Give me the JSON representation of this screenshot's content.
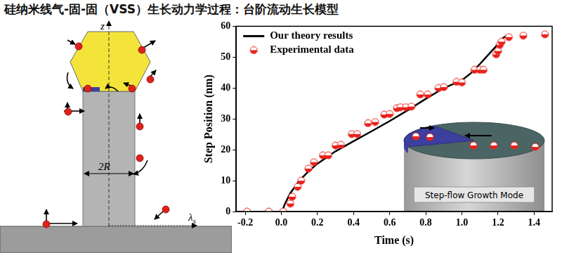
{
  "title": "硅纳米线气-固-固（VSS）生长动力学过程：台阶流动生长模型",
  "diagram": {
    "vertical_axis_label": "z",
    "horizontal_axis_label": "λs",
    "diameter_label": "2R"
  },
  "chart_data": {
    "type": "scatter",
    "x_label": "Time (s)",
    "y_label": "Step Position (nm)",
    "xlim": [
      -0.25,
      1.5
    ],
    "xticks": [
      -0.2,
      {
        "value": 0,
        "label": "0.0"
      },
      0.2,
      0.4,
      0.6,
      0.8,
      {
        "value": 1,
        "label": "1.0"
      },
      1.2,
      1.4
    ],
    "ylim": [
      0,
      60
    ],
    "yticks": [
      0,
      10,
      20,
      30,
      40,
      50,
      60
    ],
    "grid": false,
    "legend": "upper left",
    "annotations": [
      "Step-flow Growth Mode"
    ],
    "series": [
      {
        "name": "Our theory results",
        "type": "line",
        "color": "#000000",
        "marker": "none",
        "line_style": "solid",
        "x": [
          0,
          0.01,
          0.02,
          0.05,
          0.1,
          0.15,
          0.2,
          0.3,
          0.4,
          0.5,
          0.6,
          0.7,
          0.8,
          0.9,
          1.0,
          1.05,
          1.1,
          1.15,
          1.2,
          1.23,
          1.25
        ],
        "values": [
          0,
          1,
          2.5,
          6,
          10,
          13,
          15.5,
          19.5,
          22.8,
          26,
          29.3,
          32.8,
          36.5,
          40,
          42.5,
          44.8,
          47.8,
          51,
          54.2,
          56.3,
          57
        ]
      },
      {
        "name": "Experimental data",
        "type": "scatter",
        "color": "#e8201a",
        "marker": "half-filled circle",
        "x": [
          -0.19,
          -0.07,
          0.01,
          0.05,
          0.06,
          0.09,
          0.11,
          0.15,
          0.18,
          0.23,
          0.26,
          0.3,
          0.33,
          0.39,
          0.42,
          0.48,
          0.52,
          0.57,
          0.6,
          0.64,
          0.66,
          0.69,
          0.72,
          0.77,
          0.81,
          0.87,
          0.9,
          0.97,
          1.0,
          1.07,
          1.1,
          1.12,
          1.19,
          1.2,
          1.21,
          1.22,
          1.26,
          1.34,
          1.46
        ],
        "values": [
          0,
          0,
          0,
          2.6,
          4.8,
          8,
          10,
          13.9,
          16,
          18.2,
          18.2,
          21.4,
          21.6,
          25.1,
          25.1,
          28.6,
          29,
          31.4,
          31.6,
          33.5,
          33.8,
          33.8,
          34,
          37.9,
          37.9,
          40,
          40.3,
          42,
          41.8,
          45.9,
          45.9,
          45.9,
          50.9,
          52,
          54,
          55,
          56.5,
          57,
          57.4
        ]
      }
    ]
  }
}
